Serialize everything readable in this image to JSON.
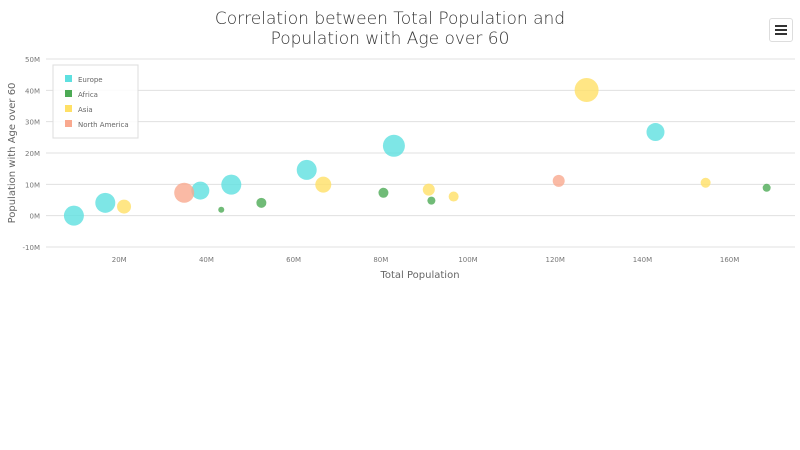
{
  "chart_data": {
    "type": "bubble",
    "title_lines": [
      "Correlation between Total Population and",
      "Population with Age over 60"
    ],
    "xlabel": "Total Population",
    "ylabel": "Population with Age over 60",
    "xlim": [
      3.2,
      175
    ],
    "ylim": [
      -10,
      50
    ],
    "x_ticks": [
      20,
      40,
      60,
      80,
      100,
      120,
      140,
      160
    ],
    "x_tick_labels": [
      "20M",
      "40M",
      "60M",
      "80M",
      "100M",
      "120M",
      "140M",
      "160M"
    ],
    "y_ticks": [
      -10,
      0,
      10,
      20,
      30,
      40,
      50
    ],
    "y_tick_labels": [
      "-10M",
      "0M",
      "10M",
      "20M",
      "30M",
      "40M",
      "50M"
    ],
    "grid": "horizontal",
    "legend_placement": "top-left",
    "series": [
      {
        "name": "Europe",
        "color": "#5ee0e0",
        "points": [
          {
            "x": 9.6,
            "y": 0,
            "size": 10
          },
          {
            "x": 16.8,
            "y": 4.1,
            "size": 10
          },
          {
            "x": 38.6,
            "y": 8,
            "size": 9
          },
          {
            "x": 45.7,
            "y": 9.9,
            "size": 10
          },
          {
            "x": 63,
            "y": 14.6,
            "size": 10
          },
          {
            "x": 83,
            "y": 22.3,
            "size": 11
          },
          {
            "x": 143,
            "y": 26.7,
            "size": 9
          }
        ]
      },
      {
        "name": "Africa",
        "color": "#4caa55",
        "points": [
          {
            "x": 43.4,
            "y": 1.9,
            "size": 3
          },
          {
            "x": 52.6,
            "y": 4.1,
            "size": 5
          },
          {
            "x": 80.6,
            "y": 7.3,
            "size": 5
          },
          {
            "x": 91.6,
            "y": 4.8,
            "size": 4
          },
          {
            "x": 168.5,
            "y": 8.9,
            "size": 4
          }
        ]
      },
      {
        "name": "Asia",
        "color": "#ffe066",
        "points": [
          {
            "x": 21.1,
            "y": 2.9,
            "size": 7
          },
          {
            "x": 66.8,
            "y": 9.9,
            "size": 8
          },
          {
            "x": 91,
            "y": 8.3,
            "size": 6
          },
          {
            "x": 96.7,
            "y": 6.1,
            "size": 5
          },
          {
            "x": 127.2,
            "y": 40.1,
            "size": 12
          },
          {
            "x": 154.5,
            "y": 10.5,
            "size": 5
          }
        ]
      },
      {
        "name": "North America",
        "color": "#f9a98f",
        "points": [
          {
            "x": 34.9,
            "y": 7.3,
            "size": 10
          },
          {
            "x": 120.8,
            "y": 11.1,
            "size": 6
          }
        ]
      }
    ]
  }
}
